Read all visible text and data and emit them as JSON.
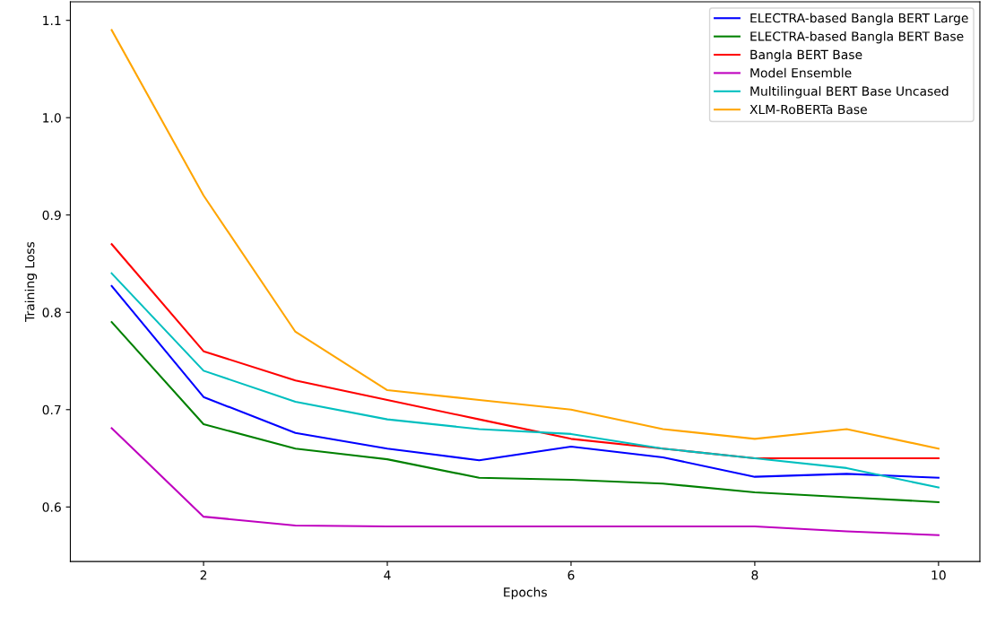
{
  "chart_data": {
    "type": "line",
    "xlabel": "Epochs",
    "ylabel": "Training Loss",
    "x": [
      1,
      2,
      3,
      4,
      5,
      6,
      7,
      8,
      9,
      10
    ],
    "xlim": [
      0.55,
      10.45
    ],
    "xticks": [
      2,
      4,
      6,
      8,
      10
    ],
    "ylim": [
      0.544,
      1.119
    ],
    "yticks": [
      0.6,
      0.7,
      0.8,
      0.9,
      {
        "value": 1,
        "label": "1.0"
      },
      1.1
    ],
    "grid": false,
    "legend": "top right",
    "marker": "none",
    "line_style": "solid",
    "series": [
      {
        "name": "ELECTRA-based Bangla BERT Large",
        "color": "#0000ff",
        "values": [
          0.827,
          0.713,
          0.676,
          0.66,
          0.648,
          0.662,
          0.651,
          0.631,
          0.634,
          0.63
        ]
      },
      {
        "name": "ELECTRA-based Bangla BERT Base",
        "color": "#008000",
        "values": [
          0.79,
          0.685,
          0.66,
          0.649,
          0.63,
          0.628,
          0.624,
          0.615,
          0.61,
          0.605
        ]
      },
      {
        "name": "Bangla BERT Base",
        "color": "#ff0000",
        "values": [
          0.87,
          0.76,
          0.73,
          0.71,
          0.69,
          0.67,
          0.66,
          0.65,
          0.65,
          0.65
        ]
      },
      {
        "name": "Model Ensemble",
        "color": "#bf00bf",
        "values": [
          0.681,
          0.59,
          0.581,
          0.58,
          0.58,
          0.58,
          0.58,
          0.58,
          0.575,
          0.571
        ]
      },
      {
        "name": "Multilingual BERT Base Uncased",
        "color": "#00bfbf",
        "values": [
          0.84,
          0.74,
          0.708,
          0.69,
          0.68,
          0.675,
          0.66,
          0.65,
          0.64,
          0.62
        ]
      },
      {
        "name": "XLM-RoBERTa Base",
        "color": "#ffa500",
        "values": [
          1.09,
          0.92,
          0.78,
          0.72,
          0.71,
          0.7,
          0.68,
          0.67,
          0.68,
          0.66
        ]
      }
    ]
  }
}
